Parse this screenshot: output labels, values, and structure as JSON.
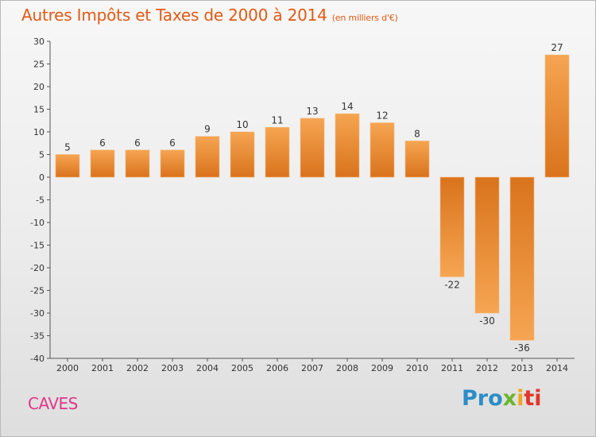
{
  "chart_data": {
    "type": "bar",
    "title": "Autres Impôts et Taxes de 2000 à 2014",
    "subtitle": "(en milliers d'€)",
    "categories": [
      "2000",
      "2001",
      "2002",
      "2003",
      "2004",
      "2005",
      "2006",
      "2007",
      "2008",
      "2009",
      "2010",
      "2011",
      "2012",
      "2013",
      "2014"
    ],
    "values": [
      5,
      6,
      6,
      6,
      9,
      10,
      11,
      13,
      14,
      12,
      8,
      -22,
      -30,
      -36,
      27
    ],
    "ylim": [
      -40,
      30
    ],
    "yticks": [
      30,
      25,
      20,
      15,
      10,
      5,
      0,
      -5,
      -10,
      -15,
      -20,
      -25,
      -30,
      -35,
      -40
    ],
    "grid": false,
    "bar_color": "#f0913a",
    "bar_color_dark": "#d9731c"
  },
  "footer": {
    "place": "CAVES",
    "brand_part1": "Pro",
    "brand_part2": "x",
    "brand_part3": "i",
    "brand_part4": "ti"
  },
  "colors": {
    "title": "#e05a16",
    "place": "#e0368a"
  }
}
